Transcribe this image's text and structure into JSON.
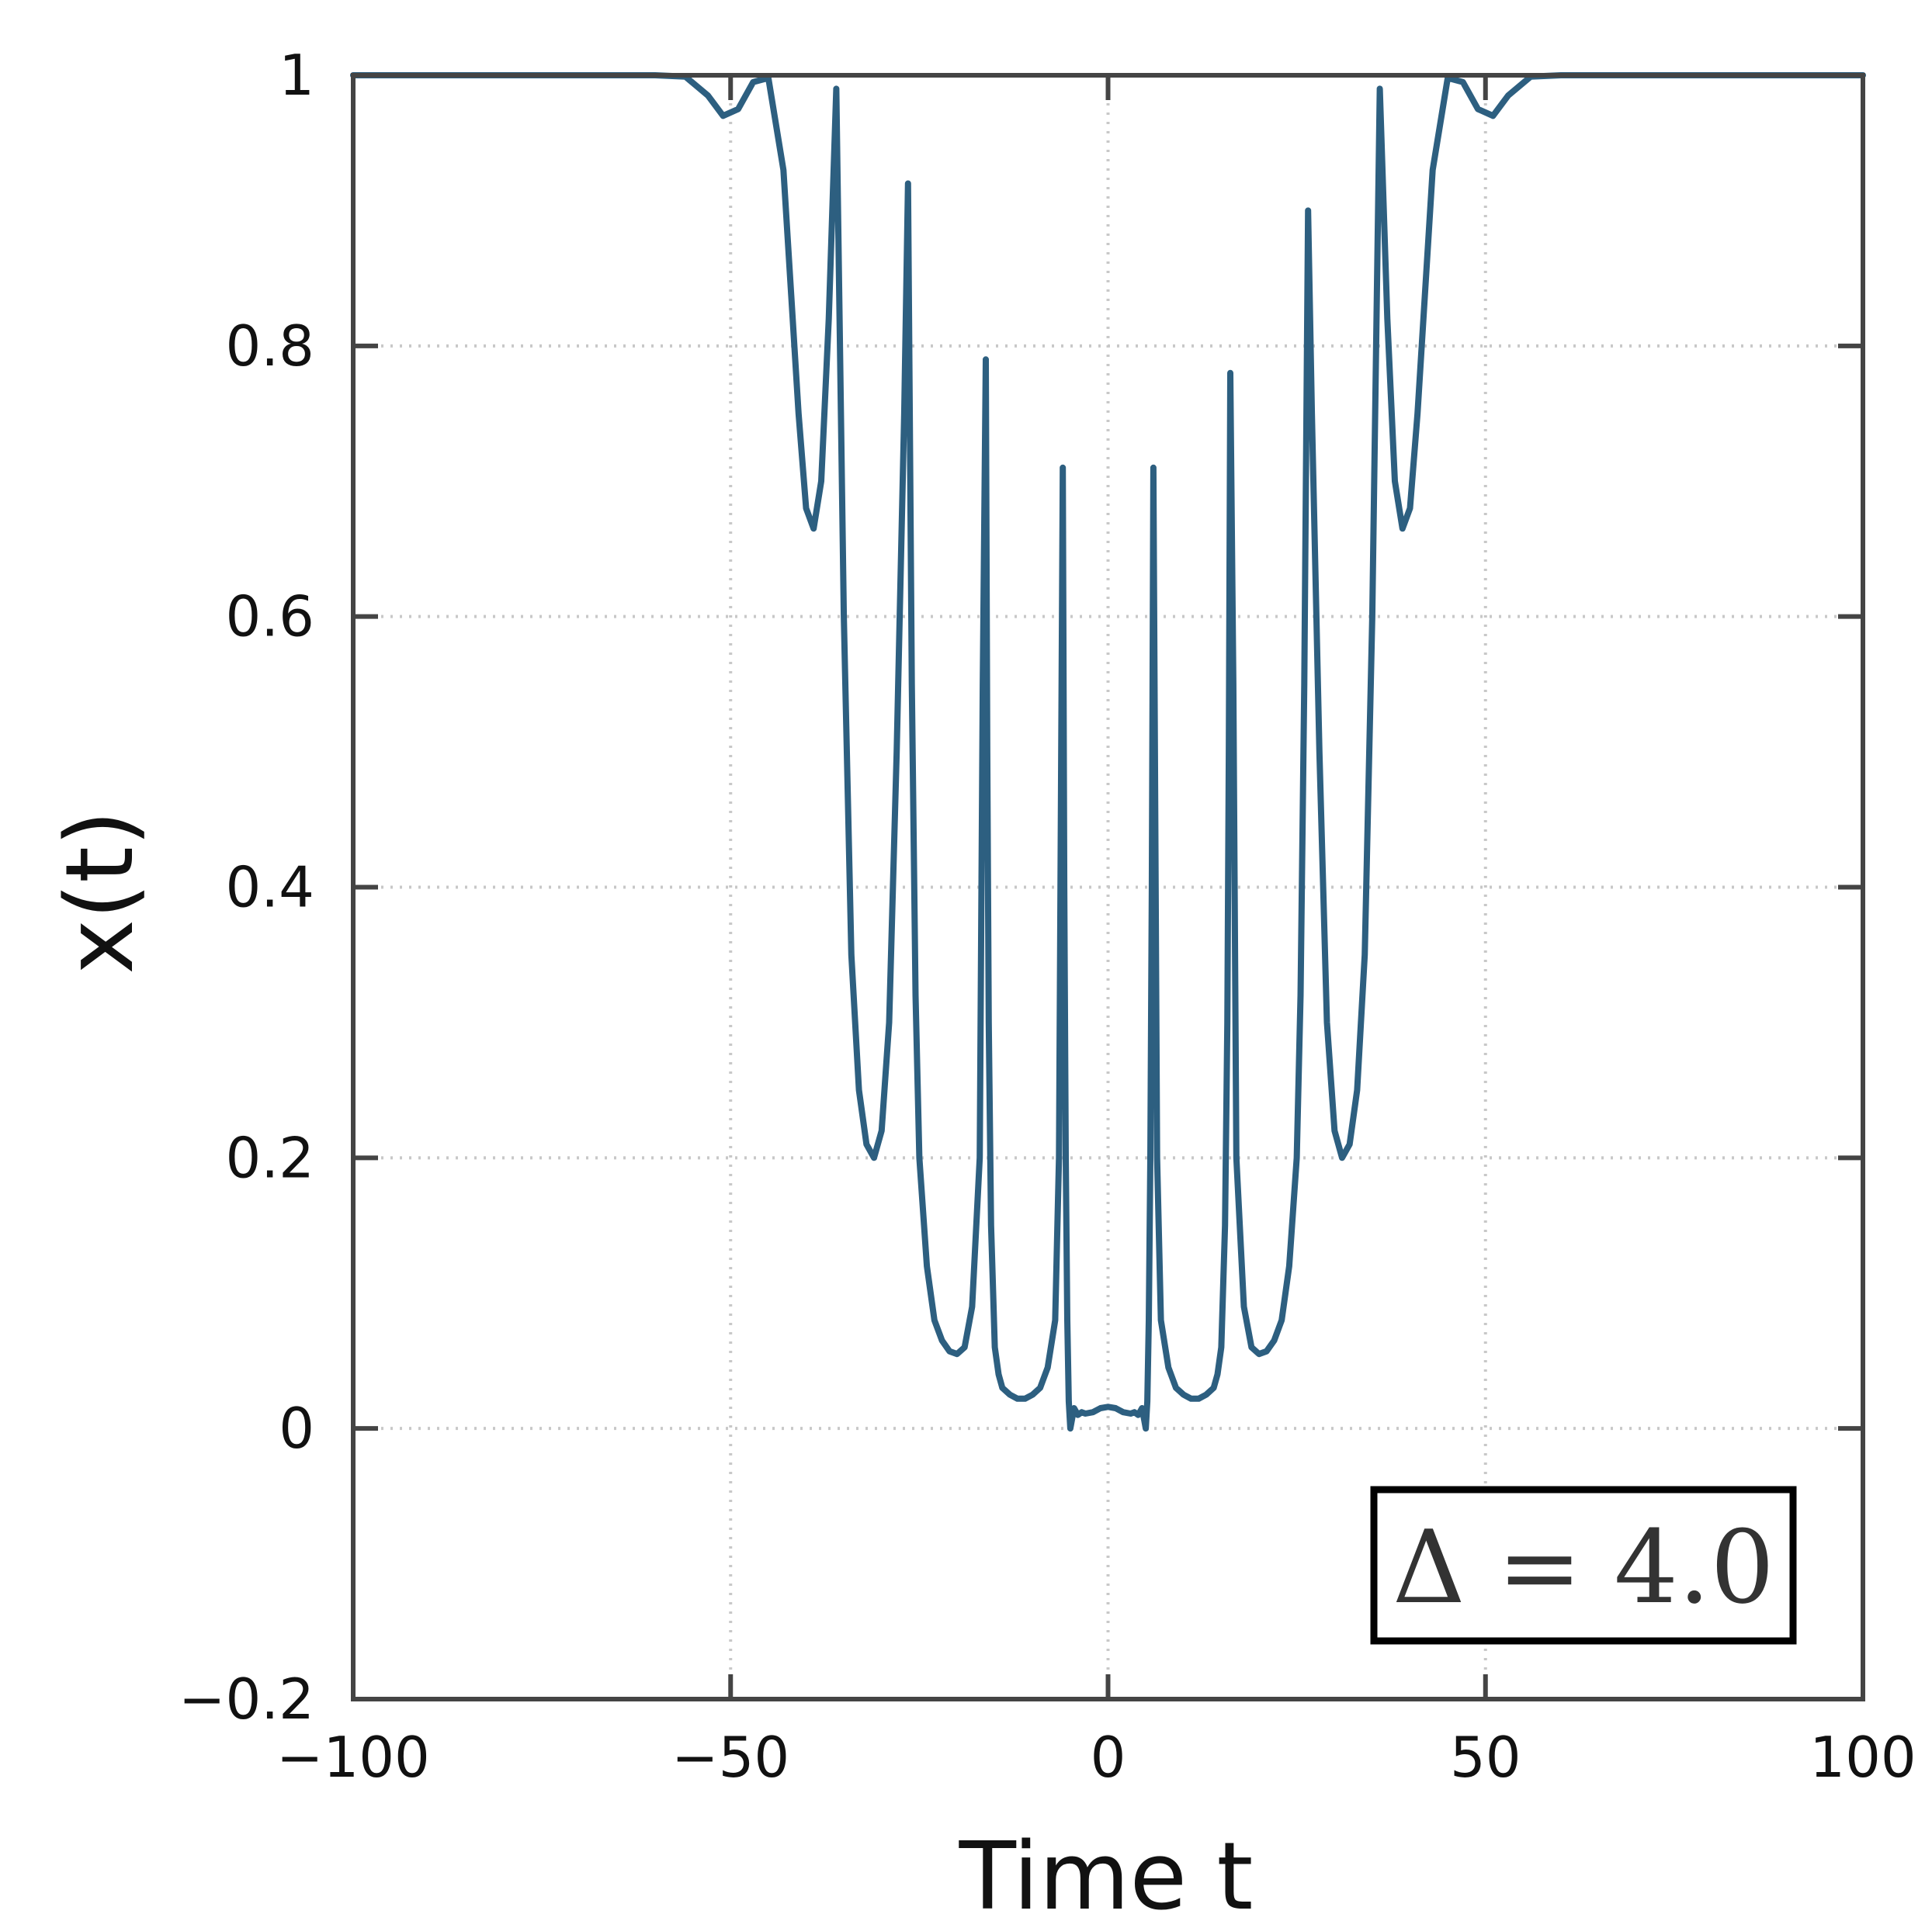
{
  "chart_data": {
    "type": "line",
    "title": "",
    "xlabel": "Time t",
    "ylabel": "x(t)",
    "xlim": [
      -100,
      100
    ],
    "ylim": [
      -0.2,
      1
    ],
    "x_ticks": [
      -100,
      -50,
      0,
      50,
      100
    ],
    "x_tick_labels": [
      "−100",
      "−50",
      "0",
      "50",
      "100"
    ],
    "y_ticks": [
      -0.2,
      0,
      0.2,
      0.4,
      0.6,
      0.8,
      1
    ],
    "y_tick_labels": [
      "−0.2",
      "0",
      "0.2",
      "0.4",
      "0.6",
      "0.8",
      "1"
    ],
    "grid": true,
    "grid_style": "dotted",
    "annotation": "Δ = 4.0",
    "line_color": "#2d5f80",
    "series": [
      {
        "x": [
          -100,
          -60,
          -56,
          -53,
          -51,
          -49,
          -47,
          -45,
          -43,
          -41,
          -40,
          -39,
          -38,
          -37,
          -36,
          -35,
          -34,
          -33,
          -32,
          -31,
          -30,
          -29,
          -28,
          -27,
          -26.5,
          -26,
          -25.5,
          -25,
          -24,
          -23,
          -22,
          -21,
          -20,
          -19,
          -18,
          -17,
          -16.6,
          -16.2,
          -16,
          -15.8,
          -15.5,
          -15,
          -14.5,
          -14,
          -13,
          -12,
          -11,
          -10,
          -9,
          -8,
          -7,
          -6.5,
          -6,
          -5.8,
          -5.6,
          -5.4,
          -5.2,
          -5,
          -4.5,
          -4,
          -3.5,
          -3,
          -2,
          -1,
          0,
          1,
          2,
          3,
          3.5,
          4,
          4.5,
          5,
          5.2,
          5.4,
          5.6,
          5.8,
          6,
          6.5,
          7,
          8,
          9,
          10,
          11,
          12,
          13,
          14,
          14.5,
          15,
          15.5,
          15.8,
          16,
          16.2,
          16.6,
          17,
          18,
          19,
          20,
          21,
          22,
          23,
          24,
          25,
          25.5,
          26,
          26.5,
          27,
          28,
          29,
          30,
          31,
          32,
          33,
          34,
          35,
          36,
          37,
          38,
          39,
          40,
          41,
          43,
          45,
          47,
          49,
          51,
          53,
          56,
          60,
          100
        ],
        "y": [
          1.0,
          1.0,
          0.999,
          0.985,
          0.97,
          0.975,
          0.995,
          0.998,
          0.93,
          0.75,
          0.68,
          0.665,
          0.7,
          0.82,
          0.99,
          0.6,
          0.35,
          0.25,
          0.21,
          0.2,
          0.22,
          0.3,
          0.5,
          0.75,
          0.92,
          0.55,
          0.32,
          0.2,
          0.12,
          0.08,
          0.065,
          0.057,
          0.055,
          0.06,
          0.09,
          0.2,
          0.55,
          0.79,
          0.5,
          0.3,
          0.15,
          0.06,
          0.04,
          0.03,
          0.025,
          0.022,
          0.022,
          0.025,
          0.03,
          0.045,
          0.08,
          0.2,
          0.71,
          0.4,
          0.2,
          0.08,
          0.02,
          0.0,
          0.015,
          0.01,
          0.012,
          0.011,
          0.012,
          0.015,
          0.016,
          0.015,
          0.012,
          0.011,
          0.012,
          0.01,
          0.015,
          0.0,
          0.02,
          0.08,
          0.2,
          0.4,
          0.71,
          0.2,
          0.08,
          0.045,
          0.03,
          0.025,
          0.022,
          0.022,
          0.025,
          0.03,
          0.04,
          0.06,
          0.15,
          0.3,
          0.5,
          0.78,
          0.55,
          0.2,
          0.09,
          0.06,
          0.055,
          0.057,
          0.065,
          0.08,
          0.12,
          0.2,
          0.32,
          0.55,
          0.9,
          0.75,
          0.5,
          0.3,
          0.22,
          0.2,
          0.21,
          0.25,
          0.35,
          0.6,
          0.99,
          0.82,
          0.7,
          0.665,
          0.68,
          0.75,
          0.93,
          0.998,
          0.995,
          0.975,
          0.97,
          0.985,
          0.999,
          1.0,
          1.0
        ]
      }
    ]
  }
}
